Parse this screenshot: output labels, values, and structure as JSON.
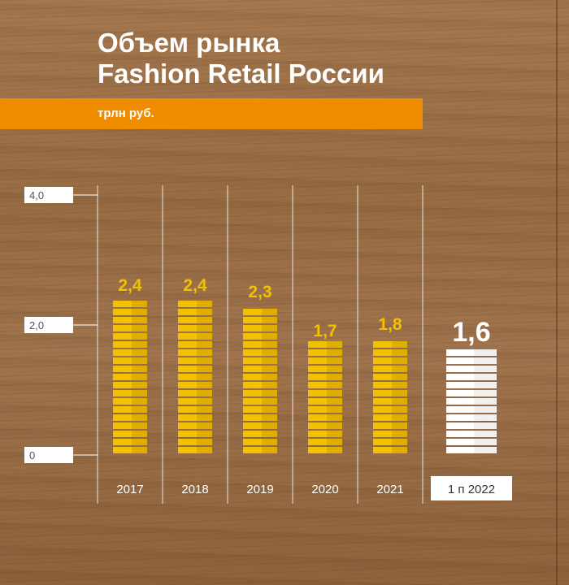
{
  "title_line1": "Объем рынка",
  "title_line2": "Fashion Retail России",
  "unit": "трлн руб.",
  "colors": {
    "accent": "#f08c00",
    "bar": "#f2c200",
    "highlight_bar": "#ffffff",
    "value_label": "#f2c200",
    "highlight_label": "#ffffff"
  },
  "chart_data": {
    "type": "bar",
    "categories": [
      "2017",
      "2018",
      "2019",
      "2020",
      "2021",
      "1 п 2022"
    ],
    "values": [
      2.4,
      2.4,
      2.3,
      1.7,
      1.8,
      1.6
    ],
    "value_labels": [
      "2,4",
      "2,4",
      "2,3",
      "1,7",
      "1,8",
      "1,6"
    ],
    "highlighted_category": "1 п 2022",
    "y_ticks": [
      "0",
      "2,0",
      "4,0"
    ],
    "ylim": [
      0,
      4.0
    ],
    "grid": "vertical",
    "title": "Объем рынка Fashion Retail России",
    "ylabel": "трлн руб."
  }
}
